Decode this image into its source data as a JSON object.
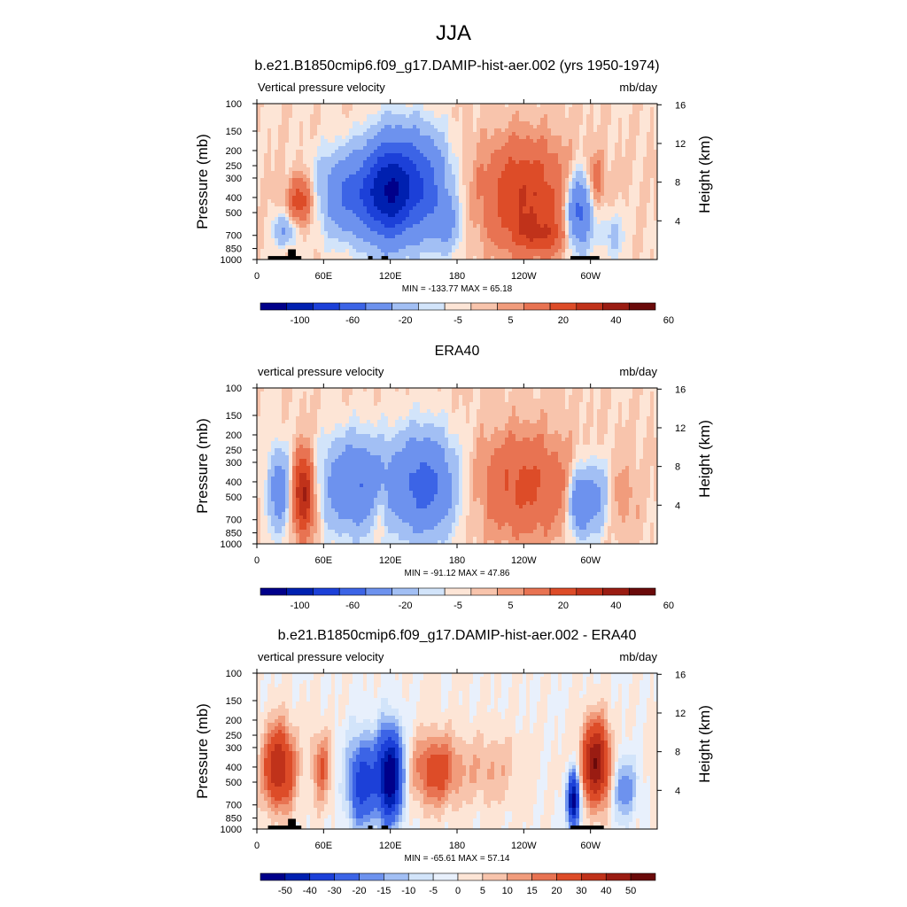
{
  "figure": {
    "main_title": "JJA"
  },
  "chart_data": [
    {
      "type": "heatmap",
      "title": "b.e21.B1850cmip6.f09_g17.DAMIP-hist-aer.002 (yrs 1950-1974)",
      "left_label": "Vertical pressure velocity",
      "right_label": "mb/day",
      "ylabel": "Pressure (mb)",
      "ylabel_right": "Height (km)",
      "x_ticks": [
        "0",
        "60E",
        "120E",
        "180",
        "120W",
        "60W"
      ],
      "y_ticks": [
        "100",
        "150",
        "200",
        "250",
        "300",
        "400",
        "500",
        "700",
        "850",
        "1000"
      ],
      "height_ticks": [
        "16",
        "12",
        "8",
        "4"
      ],
      "min_max_text": "MIN = -133.77  MAX =  65.18",
      "colorbar_labels": [
        "-100",
        "-60",
        "-20",
        "-5",
        "5",
        "20",
        "40",
        "60"
      ],
      "colorbar_colors": [
        "#00008a",
        "#0020b0",
        "#1c40d8",
        "#3c64e6",
        "#6d92ee",
        "#a2bff4",
        "#d2e4fa",
        "#fde5d6",
        "#f8c4ac",
        "#f19c7c",
        "#e87352",
        "#dd4c28",
        "#c0321a",
        "#9a1c12",
        "#6a0a0a"
      ],
      "field": {
        "blobs": [
          {
            "lon": 40,
            "p": 420,
            "w": 9,
            "h": 0.55,
            "a": 28
          },
          {
            "lon": 25,
            "p": 650,
            "w": 7,
            "h": 0.35,
            "a": -22
          },
          {
            "lon": 88,
            "p": 380,
            "w": 22,
            "h": 0.9,
            "a": -45
          },
          {
            "lon": 118,
            "p": 360,
            "w": 14,
            "h": 1.1,
            "a": -70
          },
          {
            "lon": 145,
            "p": 330,
            "w": 18,
            "h": 1.1,
            "a": -55
          },
          {
            "lon": 170,
            "p": 600,
            "w": 10,
            "h": 0.6,
            "a": -20
          },
          {
            "lon": 240,
            "p": 380,
            "w": 28,
            "h": 1.2,
            "a": 30
          },
          {
            "lon": 255,
            "p": 700,
            "w": 18,
            "h": 0.4,
            "a": 18
          },
          {
            "lon": 290,
            "p": 500,
            "w": 8,
            "h": 0.8,
            "a": -50
          },
          {
            "lon": 305,
            "p": 320,
            "w": 6,
            "h": 0.6,
            "a": 15
          },
          {
            "lon": 320,
            "p": 700,
            "w": 7,
            "h": 0.5,
            "a": -14
          }
        ],
        "topography": [
          {
            "lon1": 10,
            "lon2": 40,
            "p": 950
          },
          {
            "lon1": 28,
            "lon2": 35,
            "p": 860
          },
          {
            "lon1": 100,
            "lon2": 104,
            "p": 950
          },
          {
            "lon1": 112,
            "lon2": 118,
            "p": 950
          },
          {
            "lon1": 282,
            "lon2": 308,
            "p": 950
          }
        ],
        "levels": [
          -100,
          -80,
          -60,
          -40,
          -20,
          -10,
          -5,
          0,
          5,
          10,
          20,
          30,
          40,
          50,
          60
        ]
      }
    },
    {
      "type": "heatmap",
      "title": "ERA40",
      "left_label": "vertical pressure velocity",
      "right_label": "mb/day",
      "ylabel": "Pressure (mb)",
      "ylabel_right": "Height (km)",
      "x_ticks": [
        "0",
        "60E",
        "120E",
        "180",
        "120W",
        "60W"
      ],
      "y_ticks": [
        "100",
        "150",
        "200",
        "250",
        "300",
        "400",
        "500",
        "700",
        "850",
        "1000"
      ],
      "height_ticks": [
        "16",
        "12",
        "8",
        "4"
      ],
      "min_max_text": "MIN = -91.12  MAX =  47.86",
      "colorbar_labels": [
        "-100",
        "-60",
        "-20",
        "-5",
        "5",
        "20",
        "40",
        "60"
      ],
      "colorbar_colors": [
        "#00008a",
        "#0020b0",
        "#1c40d8",
        "#3c64e6",
        "#6d92ee",
        "#a2bff4",
        "#d2e4fa",
        "#fde5d6",
        "#f8c4ac",
        "#f19c7c",
        "#e87352",
        "#dd4c28",
        "#c0321a",
        "#9a1c12",
        "#6a0a0a"
      ],
      "field": {
        "blobs": [
          {
            "lon": 20,
            "p": 450,
            "w": 7,
            "h": 0.9,
            "a": -30
          },
          {
            "lon": 42,
            "p": 480,
            "w": 7,
            "h": 0.9,
            "a": 45
          },
          {
            "lon": 88,
            "p": 420,
            "w": 20,
            "h": 1.0,
            "a": -40
          },
          {
            "lon": 110,
            "p": 600,
            "w": 6,
            "h": 0.6,
            "a": 12
          },
          {
            "lon": 150,
            "p": 420,
            "w": 20,
            "h": 1.1,
            "a": -48
          },
          {
            "lon": 240,
            "p": 420,
            "w": 30,
            "h": 1.2,
            "a": 22
          },
          {
            "lon": 290,
            "p": 550,
            "w": 6,
            "h": 0.7,
            "a": -40
          },
          {
            "lon": 305,
            "p": 500,
            "w": 8,
            "h": 0.8,
            "a": -25
          },
          {
            "lon": 330,
            "p": 500,
            "w": 10,
            "h": 0.8,
            "a": 8
          }
        ],
        "topography": [],
        "levels": [
          -100,
          -80,
          -60,
          -40,
          -20,
          -10,
          -5,
          0,
          5,
          10,
          20,
          30,
          40,
          50,
          60
        ]
      }
    },
    {
      "type": "heatmap",
      "title": "b.e21.B1850cmip6.f09_g17.DAMIP-hist-aer.002 - ERA40",
      "left_label": "vertical pressure velocity",
      "right_label": "mb/day",
      "ylabel": "Pressure (mb)",
      "ylabel_right": "Height (km)",
      "x_ticks": [
        "0",
        "60E",
        "120E",
        "180",
        "120W",
        "60W"
      ],
      "y_ticks": [
        "100",
        "150",
        "200",
        "250",
        "300",
        "400",
        "500",
        "700",
        "850",
        "1000"
      ],
      "height_ticks": [
        "16",
        "12",
        "8",
        "4"
      ],
      "min_max_text": "MIN = -65.61  MAX =  57.14",
      "colorbar_labels": [
        "-50",
        "-40",
        "-30",
        "-20",
        "-15",
        "-10",
        "-5",
        "0",
        "5",
        "10",
        "15",
        "20",
        "30",
        "40",
        "50"
      ],
      "colorbar_colors": [
        "#00008a",
        "#0020b0",
        "#1c40d8",
        "#3c64e6",
        "#6d92ee",
        "#a2bff4",
        "#d2e4fa",
        "#e8f0fc",
        "#fde5d6",
        "#f8c4ac",
        "#f19c7c",
        "#e87352",
        "#dd4c28",
        "#c0321a",
        "#9a1c12",
        "#6a0a0a"
      ],
      "field": {
        "blobs": [
          {
            "lon": 20,
            "p": 400,
            "w": 10,
            "h": 0.9,
            "a": 40
          },
          {
            "lon": 58,
            "p": 400,
            "w": 6,
            "h": 0.8,
            "a": 20
          },
          {
            "lon": 95,
            "p": 500,
            "w": 10,
            "h": 1.0,
            "a": -35
          },
          {
            "lon": 120,
            "p": 450,
            "w": 8,
            "h": 1.0,
            "a": -60
          },
          {
            "lon": 160,
            "p": 420,
            "w": 15,
            "h": 0.8,
            "a": 25
          },
          {
            "lon": 210,
            "p": 420,
            "w": 20,
            "h": 0.8,
            "a": 10
          },
          {
            "lon": 285,
            "p": 650,
            "w": 4,
            "h": 0.6,
            "a": -55
          },
          {
            "lon": 305,
            "p": 380,
            "w": 9,
            "h": 0.9,
            "a": 50
          },
          {
            "lon": 330,
            "p": 550,
            "w": 8,
            "h": 0.7,
            "a": -20
          }
        ],
        "topography": [
          {
            "lon1": 10,
            "lon2": 40,
            "p": 950
          },
          {
            "lon1": 28,
            "lon2": 35,
            "p": 860
          },
          {
            "lon1": 100,
            "lon2": 104,
            "p": 950
          },
          {
            "lon1": 112,
            "lon2": 118,
            "p": 950
          },
          {
            "lon1": 282,
            "lon2": 312,
            "p": 950
          }
        ],
        "levels": [
          -50,
          -40,
          -30,
          -20,
          -15,
          -10,
          -5,
          0,
          5,
          10,
          15,
          20,
          30,
          40,
          50
        ]
      }
    }
  ]
}
